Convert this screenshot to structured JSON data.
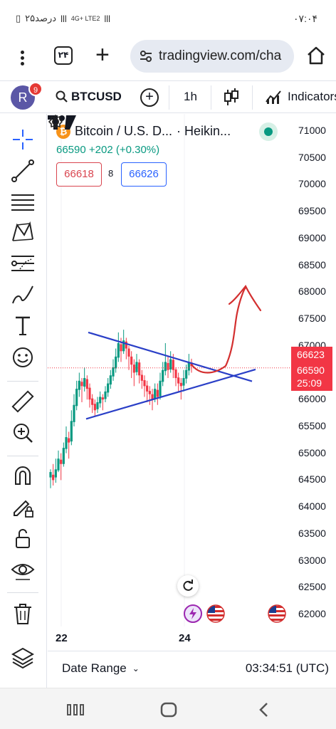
{
  "status_bar": {
    "time": "۰۷:۰۴",
    "battery": "۲۵درصد",
    "network": "4G+ LTE2"
  },
  "browser": {
    "tab_count": "۲۴",
    "url": "tradingview.com/cha"
  },
  "tv_header": {
    "avatar_letter": "R",
    "notification_count": "9",
    "symbol": "BTCUSD",
    "interval": "1h",
    "indicators_label": "Indicators"
  },
  "legend": {
    "coin_glyph": "₿",
    "title": "Bitcoin / U.S. D...",
    "chart_style": "· Heikin...",
    "price": "66590",
    "change": "+202 (+0.30%)",
    "bid": "66618",
    "spread": "8",
    "ask": "66626"
  },
  "price_axis": [
    "71000",
    "70500",
    "70000",
    "69500",
    "69000",
    "68500",
    "68000",
    "67500",
    "67000",
    "66500",
    "66000",
    "65500",
    "65000",
    "64500",
    "64000",
    "63500",
    "63000",
    "62500",
    "62000"
  ],
  "price_tags": {
    "ask_tag": "66623",
    "last_price": "66590",
    "countdown": "25:09"
  },
  "time_axis": [
    "22",
    "24"
  ],
  "bottom_bar": {
    "date_range": "Date Range",
    "clock": "03:34:51 (UTC)"
  },
  "colors": {
    "up": "#089981",
    "down": "#f23645",
    "trendline": "#2a3fc7",
    "drawing": "#d32f2f",
    "accent": "#2962ff"
  },
  "chart_data": {
    "type": "candlestick",
    "title": "",
    "series_name": "BTCUSD 1h Heikin Ashi",
    "ylim": [
      61800,
      71200
    ],
    "x_ticks": [
      "22",
      "24"
    ],
    "candles": [
      [
        64550,
        64650,
        64350,
        64700
      ],
      [
        64600,
        64500,
        64400,
        64800
      ],
      [
        64550,
        64700,
        64450,
        64900
      ],
      [
        64680,
        64900,
        64650,
        65050
      ],
      [
        64880,
        64800,
        64500,
        65000
      ],
      [
        64800,
        65100,
        64750,
        65200
      ],
      [
        65080,
        65300,
        65000,
        65500
      ],
      [
        65280,
        65200,
        64900,
        65400
      ],
      [
        65220,
        65600,
        65150,
        65800
      ],
      [
        65580,
        65900,
        65500,
        66100
      ],
      [
        65880,
        66200,
        65800,
        66350
      ],
      [
        66180,
        66350,
        66050,
        66500
      ],
      [
        66330,
        66250,
        65950,
        66400
      ],
      [
        66240,
        66400,
        66150,
        66600
      ],
      [
        66380,
        66200,
        66000,
        66450
      ],
      [
        66220,
        66000,
        65850,
        66300
      ],
      [
        66020,
        65900,
        65750,
        66100
      ],
      [
        65920,
        65800,
        65700,
        66000
      ],
      [
        65820,
        65950,
        65750,
        66050
      ],
      [
        65930,
        66050,
        65850,
        66150
      ],
      [
        66040,
        66000,
        65800,
        66100
      ],
      [
        66010,
        66150,
        65950,
        66250
      ],
      [
        66130,
        66300,
        66050,
        66400
      ],
      [
        66280,
        66450,
        66200,
        66550
      ],
      [
        66430,
        66600,
        66350,
        66750
      ],
      [
        66580,
        66800,
        66500,
        66950
      ],
      [
        66780,
        67050,
        66700,
        67250
      ],
      [
        67030,
        66900,
        66700,
        67150
      ],
      [
        66900,
        67100,
        66850,
        67300
      ],
      [
        67080,
        66950,
        66750,
        67150
      ],
      [
        66950,
        66800,
        66550,
        67000
      ],
      [
        66800,
        66650,
        66400,
        66900
      ],
      [
        66650,
        66500,
        66250,
        66750
      ],
      [
        66510,
        66700,
        66450,
        66850
      ],
      [
        66690,
        66450,
        66300,
        66750
      ],
      [
        66460,
        66350,
        66200,
        66550
      ],
      [
        66360,
        66250,
        66050,
        66450
      ],
      [
        66260,
        66150,
        65950,
        66350
      ],
      [
        66160,
        66100,
        65900,
        66250
      ],
      [
        66100,
        66000,
        65800,
        66200
      ],
      [
        66010,
        66200,
        65950,
        66300
      ],
      [
        66180,
        66050,
        65900,
        66300
      ],
      [
        66060,
        66350,
        66000,
        66500
      ],
      [
        66330,
        66550,
        66250,
        66700
      ],
      [
        66530,
        66700,
        66450,
        67050
      ],
      [
        66680,
        66550,
        66400,
        66800
      ],
      [
        66560,
        66750,
        66500,
        66900
      ],
      [
        66740,
        66550,
        66400,
        66850
      ],
      [
        66560,
        66400,
        66250,
        66600
      ],
      [
        66410,
        66300,
        66150,
        66500
      ],
      [
        66310,
        66250,
        66000,
        66400
      ],
      [
        66260,
        66400,
        66150,
        66550
      ],
      [
        66390,
        66550,
        66300,
        66650
      ],
      [
        66540,
        66700,
        66450,
        66850
      ],
      [
        66690,
        66620,
        66500,
        66760
      ]
    ],
    "triangle_upper": [
      [
        67250,
        "start"
      ],
      [
        66340,
        "end"
      ]
    ],
    "triangle_lower": [
      [
        65640,
        "start"
      ],
      [
        66560,
        "end"
      ]
    ],
    "annotation": "hand-drawn red arrow pointing up toward 68000"
  }
}
